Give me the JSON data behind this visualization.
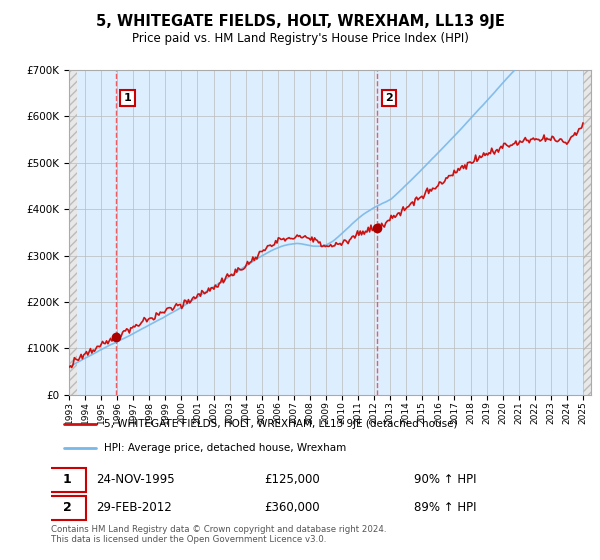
{
  "title": "5, WHITEGATE FIELDS, HOLT, WREXHAM, LL13 9JE",
  "subtitle": "Price paid vs. HM Land Registry's House Price Index (HPI)",
  "hpi_label": "HPI: Average price, detached house, Wrexham",
  "property_label": "5, WHITEGATE FIELDS, HOLT, WREXHAM, LL13 9JE (detached house)",
  "footer": "Contains HM Land Registry data © Crown copyright and database right 2024.\nThis data is licensed under the Open Government Licence v3.0.",
  "sale1_date": "24-NOV-1995",
  "sale1_price": 125000,
  "sale1_note": "90% ↑ HPI",
  "sale2_date": "29-FEB-2012",
  "sale2_price": 360000,
  "sale2_note": "89% ↑ HPI",
  "hpi_color": "#7ab8e8",
  "property_color": "#cc1111",
  "sale1_x": 1995.9,
  "sale2_x": 2012.17,
  "ylim": [
    0,
    700000
  ],
  "xlim_start": 1993,
  "xlim_end": 2025.5,
  "bg_blue": "#ddeeff",
  "bg_hatch": "#d8d8d8",
  "grid_color": "#bbbbbb",
  "sale_marker_color": "#aa0000"
}
